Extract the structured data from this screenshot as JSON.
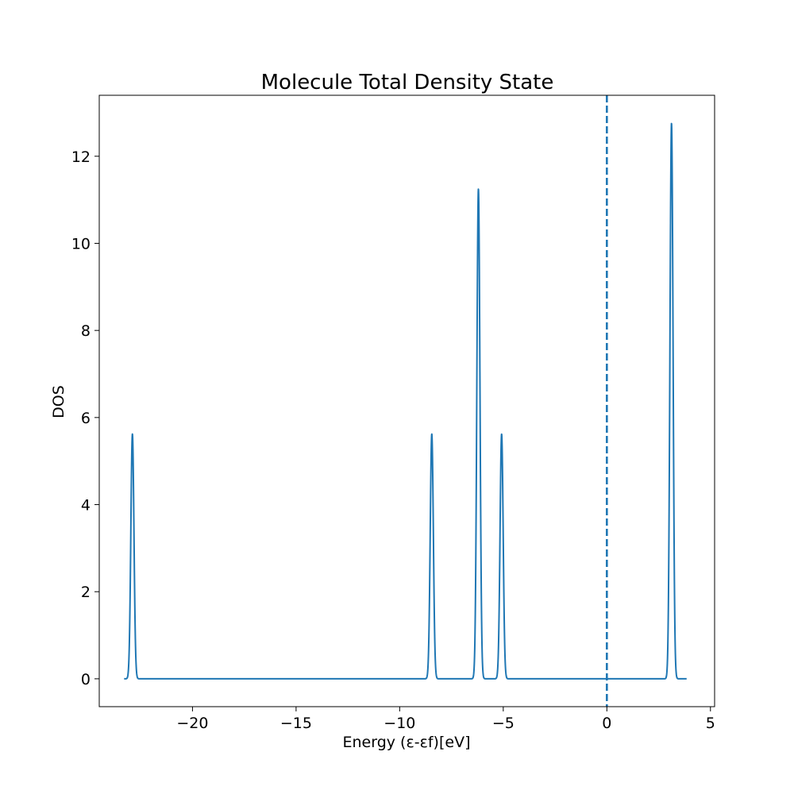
{
  "chart_data": {
    "type": "line",
    "title": "Molecule Total Density State",
    "xlabel": "Energy (ε-εf)[eV]",
    "ylabel": "DOS",
    "xlim": [
      -24.5,
      5.2
    ],
    "ylim": [
      -0.64,
      13.4
    ],
    "xticks": [
      -20,
      -15,
      -10,
      -5,
      0,
      5
    ],
    "xtick_labels": [
      "−20",
      "−15",
      "−10",
      "−5",
      "0",
      "5"
    ],
    "yticks": [
      0,
      2,
      4,
      6,
      8,
      10,
      12
    ],
    "ytick_labels": [
      "0",
      "2",
      "4",
      "6",
      "8",
      "10",
      "12"
    ],
    "grid": false,
    "series": [
      {
        "color": "#1f77b4",
        "x_range": [
          -23.3,
          3.85
        ],
        "baseline": 0,
        "peaks": [
          {
            "center": -22.9,
            "height": 5.62
          },
          {
            "center": -8.45,
            "height": 5.62
          },
          {
            "center": -6.2,
            "height": 11.25
          },
          {
            "center": -5.08,
            "height": 5.62
          },
          {
            "center": 3.12,
            "height": 12.76
          }
        ]
      }
    ],
    "annotations": [
      {
        "type": "vline",
        "x": 0,
        "style": "dashed",
        "color": "#1f77b4"
      }
    ]
  }
}
